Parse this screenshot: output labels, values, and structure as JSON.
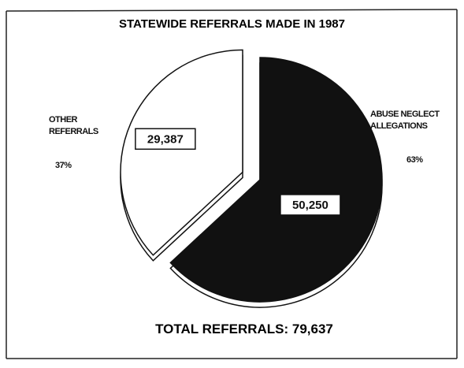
{
  "chart_data": {
    "type": "pie",
    "title": "STATEWIDE REFERRALS MADE IN 1987",
    "categories": [
      "OTHER REFERRALS",
      "ABUSE NEGLECT ALLEGATIONS"
    ],
    "values": [
      29387,
      50250
    ],
    "value_labels": [
      "29,387",
      "50,250"
    ],
    "percent_labels": [
      "37%",
      "63%"
    ],
    "colors": [
      "#ffffff",
      "#111111"
    ],
    "annotation": "TOTAL REFERRALS: 79,637"
  }
}
